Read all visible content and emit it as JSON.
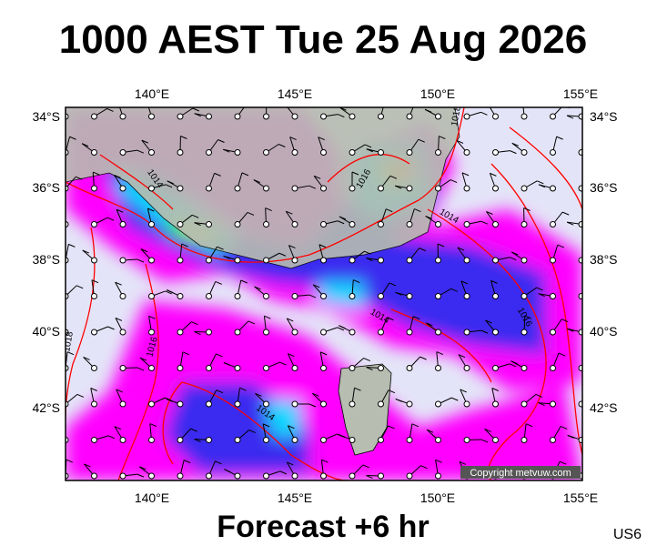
{
  "title": "1000 AEST Tue 25 Aug 2026",
  "map": {
    "top_labels": [
      "140°E",
      "145°E",
      "150°E",
      "155°E"
    ],
    "bottom_labels": [
      "140°E",
      "145°E",
      "150°E",
      "155°E"
    ],
    "left_labels": [
      "34°S",
      "36°S",
      "38°S",
      "40°S",
      "42°S"
    ],
    "right_labels": [
      "34°S",
      "36°S",
      "38°S",
      "40°S",
      "42°S"
    ],
    "isobar_labels": [
      "1014",
      "1016",
      "1014",
      "1018",
      "1016",
      "1014",
      "1016",
      "1018",
      "1014"
    ],
    "copyright": "Copyright metvuw.com"
  },
  "footer": {
    "caption": "Forecast +6 hr",
    "code": "US6"
  }
}
